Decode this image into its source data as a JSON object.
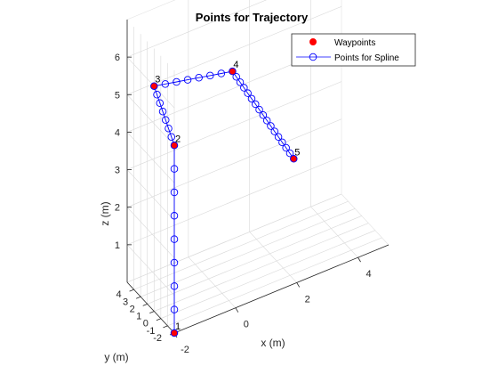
{
  "chart_data": {
    "type": "scatter",
    "title": "Points for Trajectory",
    "xlabel": "x (m)",
    "ylabel": "y (m)",
    "zlabel": "z (m)",
    "xlim": [
      -2,
      5
    ],
    "ylim": [
      -2,
      5
    ],
    "zlim": [
      0,
      7
    ],
    "xticks": [
      -2,
      0,
      2,
      4
    ],
    "yticks": [
      -2,
      -1,
      0,
      1,
      2,
      3,
      4
    ],
    "zticks": [
      0,
      1,
      2,
      3,
      4,
      5,
      6
    ],
    "grid": true,
    "legend_placement": "top-right",
    "series": [
      {
        "name": "Waypoints",
        "color": "#ff0000",
        "marker": "filled-circle",
        "points": [
          {
            "label": "1",
            "x": -2,
            "y": -2,
            "z": 0
          },
          {
            "label": "2",
            "x": -2,
            "y": -2,
            "z": 5
          },
          {
            "label": "3",
            "x": -2,
            "y": 1,
            "z": 6
          },
          {
            "label": "4",
            "x": 1,
            "y": 3,
            "z": 5
          },
          {
            "label": "5",
            "x": 3,
            "y": 3,
            "z": 2
          }
        ]
      },
      {
        "name": "Points for Spline",
        "color": "#0000ff",
        "marker": "open-circle",
        "segments": [
          {
            "from": 0,
            "to": 1,
            "count": 8
          },
          {
            "from": 1,
            "to": 2,
            "count": 7
          },
          {
            "from": 2,
            "to": 3,
            "count": 7
          },
          {
            "from": 3,
            "to": 4,
            "count": 16
          }
        ]
      }
    ]
  }
}
